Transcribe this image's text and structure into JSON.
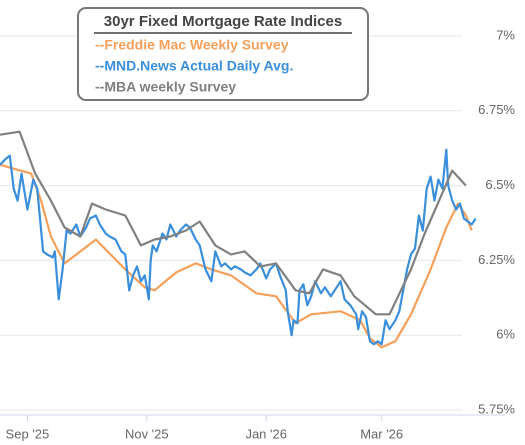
{
  "chart_data": {
    "type": "line",
    "legend_title": "30yr Fixed Mortgage Rate Indices",
    "xlim": [
      -14,
      244
    ],
    "xticks": [
      {
        "value": 0,
        "label": "Sep '25"
      },
      {
        "value": 61,
        "label": "Nov '25"
      },
      {
        "value": 122,
        "label": "Jan '26"
      },
      {
        "value": 181,
        "label": "Mar '26"
      }
    ],
    "ylim": [
      5.75,
      7
    ],
    "yticks": [
      {
        "value": 5.75,
        "label": "5.75%"
      },
      {
        "value": 6,
        "label": "6%"
      },
      {
        "value": 6.25,
        "label": "6.25%"
      },
      {
        "value": 6.5,
        "label": "6.5%"
      },
      {
        "value": 6.75,
        "label": "6.75%"
      },
      {
        "value": 7,
        "label": "7%"
      }
    ],
    "grid": true,
    "series": [
      {
        "name": "--Freddie Mac Weekly Survey",
        "color": "#f5a05a",
        "x": [
          -14,
          -9,
          2,
          7,
          12,
          19,
          35,
          50,
          60,
          65,
          76,
          86,
          94,
          104,
          117,
          127,
          137,
          145,
          160,
          170,
          175,
          181,
          188,
          196,
          206,
          214,
          220,
          224,
          227
        ],
        "values": [
          6.57,
          6.56,
          6.54,
          6.45,
          6.33,
          6.24,
          6.32,
          6.22,
          6.16,
          6.15,
          6.21,
          6.24,
          6.22,
          6.2,
          6.14,
          6.13,
          6.04,
          6.07,
          6.08,
          6.05,
          5.99,
          5.96,
          5.98,
          6.07,
          6.22,
          6.36,
          6.44,
          6.4,
          6.35
        ]
      },
      {
        "name": "--MND.News Actual Daily Avg.",
        "color": "#3a8fdd",
        "x": [
          -14,
          -11,
          -9,
          -7,
          -5,
          -3,
          0,
          3,
          5,
          8,
          10,
          13,
          14,
          16,
          18,
          20,
          22,
          25,
          27,
          30,
          32,
          35,
          37,
          40,
          42,
          45,
          48,
          50,
          52,
          54,
          56,
          58,
          60,
          62,
          63,
          64,
          66,
          69,
          71,
          73,
          76,
          78,
          81,
          83,
          86,
          88,
          91,
          94,
          96,
          99,
          101,
          104,
          106,
          109,
          111,
          114,
          117,
          119,
          122,
          124,
          127,
          129,
          132,
          133,
          135,
          136,
          138,
          139,
          141,
          143,
          145,
          147,
          150,
          152,
          155,
          157,
          160,
          162,
          165,
          168,
          169,
          171,
          173,
          175,
          177,
          179,
          181,
          183,
          185,
          188,
          190,
          192,
          194,
          196,
          198,
          200,
          202,
          204,
          206,
          208,
          210,
          212,
          214,
          215,
          217,
          219,
          221,
          223,
          225,
          227,
          229
        ],
        "values": [
          6.57,
          6.59,
          6.6,
          6.49,
          6.45,
          6.54,
          6.42,
          6.52,
          6.49,
          6.28,
          6.27,
          6.26,
          6.28,
          6.12,
          6.22,
          6.35,
          6.34,
          6.37,
          6.33,
          6.36,
          6.39,
          6.4,
          6.37,
          6.34,
          6.33,
          6.32,
          6.28,
          6.27,
          6.15,
          6.2,
          6.23,
          6.18,
          6.2,
          6.12,
          6.25,
          6.3,
          6.28,
          6.34,
          6.32,
          6.37,
          6.33,
          6.35,
          6.37,
          6.36,
          6.32,
          6.3,
          6.22,
          6.18,
          6.28,
          6.23,
          6.24,
          6.22,
          6.23,
          6.22,
          6.21,
          6.2,
          6.22,
          6.24,
          6.19,
          6.22,
          6.24,
          6.2,
          6.15,
          6.08,
          6.0,
          6.05,
          6.04,
          6.15,
          6.17,
          6.1,
          6.13,
          6.18,
          6.14,
          6.16,
          6.13,
          6.15,
          6.18,
          6.12,
          6.1,
          6.07,
          6.02,
          6.08,
          6.06,
          5.98,
          5.97,
          5.98,
          5.97,
          6.05,
          6.02,
          6.05,
          6.08,
          6.15,
          6.22,
          6.27,
          6.29,
          6.4,
          6.35,
          6.49,
          6.53,
          6.45,
          6.52,
          6.49,
          6.62,
          6.5,
          6.45,
          6.42,
          6.44,
          6.39,
          6.38,
          6.37,
          6.39
        ]
      },
      {
        "name": "--MBA weekly Survey",
        "color": "#808080",
        "x": [
          -14,
          -4,
          4,
          12,
          19,
          27,
          33,
          40,
          50,
          58,
          65,
          73,
          81,
          88,
          96,
          104,
          111,
          119,
          127,
          137,
          144,
          151,
          160,
          167,
          178,
          185,
          196,
          203,
          211,
          217,
          224
        ],
        "values": [
          6.67,
          6.68,
          6.54,
          6.45,
          6.36,
          6.33,
          6.44,
          6.42,
          6.4,
          6.3,
          6.32,
          6.33,
          6.35,
          6.38,
          6.3,
          6.27,
          6.28,
          6.23,
          6.24,
          6.15,
          6.14,
          6.22,
          6.2,
          6.13,
          6.07,
          6.07,
          6.22,
          6.34,
          6.46,
          6.55,
          6.5
        ]
      }
    ]
  }
}
